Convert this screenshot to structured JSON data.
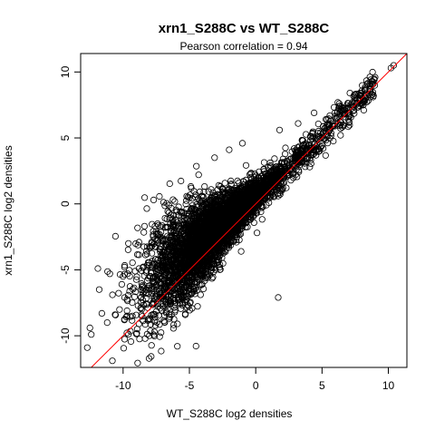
{
  "chart_data": {
    "type": "scatter",
    "title": "xrn1_S288C vs WT_S288C",
    "subtitle": "Pearson correlation =  0.94",
    "xlabel": "WT_S288C log2 densities",
    "ylabel": "xrn1_S288C log2 densities",
    "xlim": [
      -13.2,
      11.4
    ],
    "ylim": [
      -12.4,
      11.4
    ],
    "xticks": [
      -10,
      -5,
      0,
      5,
      10
    ],
    "yticks": [
      -10,
      -5,
      0,
      5,
      10
    ],
    "grid": false,
    "point_style": "open-circle",
    "reference_line": {
      "slope": 1,
      "intercept": 0,
      "color": "#ff0000"
    },
    "colors": {
      "points": "#000000",
      "reference_line": "#ff0000",
      "axes": "#000000"
    },
    "outliers": [
      {
        "x": 10.4,
        "y": 10.5
      },
      {
        "x": 10.2,
        "y": 10.3
      },
      {
        "x": 9.0,
        "y": 9.6
      },
      {
        "x": 8.6,
        "y": 9.1
      },
      {
        "x": 7.1,
        "y": 8.4
      },
      {
        "x": 6.3,
        "y": 7.6
      },
      {
        "x": 7.5,
        "y": 7.8
      },
      {
        "x": 1.7,
        "y": -7.1
      },
      {
        "x": -7.7,
        "y": 0.3
      },
      {
        "x": -7.6,
        "y": -1.7
      },
      {
        "x": -8.8,
        "y": -2.9
      },
      {
        "x": -12.5,
        "y": -9.4
      },
      {
        "x": -12.4,
        "y": -9.9
      },
      {
        "x": -12.7,
        "y": -10.9
      },
      {
        "x": -11.6,
        "y": -8.3
      },
      {
        "x": -11.2,
        "y": -9.0
      },
      {
        "x": -10.6,
        "y": -8.4
      },
      {
        "x": -9.3,
        "y": -8.5
      },
      {
        "x": -8.8,
        "y": -9.1
      },
      {
        "x": -7.6,
        "y": -8.6
      },
      {
        "x": -6.1,
        "y": -8.2
      },
      {
        "x": -5.9,
        "y": -9.1
      },
      {
        "x": -5.2,
        "y": -7.0
      },
      {
        "x": -11.8,
        "y": -6.5
      },
      {
        "x": -10.8,
        "y": -6.9
      },
      {
        "x": -11.9,
        "y": -4.9
      },
      {
        "x": -10.1,
        "y": -6.1
      },
      {
        "x": -9.6,
        "y": -3.0
      },
      {
        "x": -8.2,
        "y": -3.8
      },
      {
        "x": -10.0,
        "y": -5.5
      },
      {
        "x": -11.0,
        "y": -5.3
      },
      {
        "x": -9.7,
        "y": -8.1
      },
      {
        "x": -4.3,
        "y": 2.2
      },
      {
        "x": -3.1,
        "y": 3.5
      },
      {
        "x": -2.0,
        "y": 4.1
      },
      {
        "x": -1.0,
        "y": 4.6
      },
      {
        "x": 1.8,
        "y": 5.6
      },
      {
        "x": 3.2,
        "y": 6.1
      },
      {
        "x": 4.4,
        "y": 6.9
      },
      {
        "x": 6.4,
        "y": 5.2
      },
      {
        "x": 8.3,
        "y": 8.0
      },
      {
        "x": 8.8,
        "y": 8.3
      },
      {
        "x": -6.6,
        "y": -6.0
      },
      {
        "x": -4.8,
        "y": -6.3
      },
      {
        "x": -3.6,
        "y": -5.6
      },
      {
        "x": -2.7,
        "y": -4.6
      },
      {
        "x": -1.1,
        "y": -3.6
      },
      {
        "x": 0.1,
        "y": -2.2
      }
    ]
  }
}
